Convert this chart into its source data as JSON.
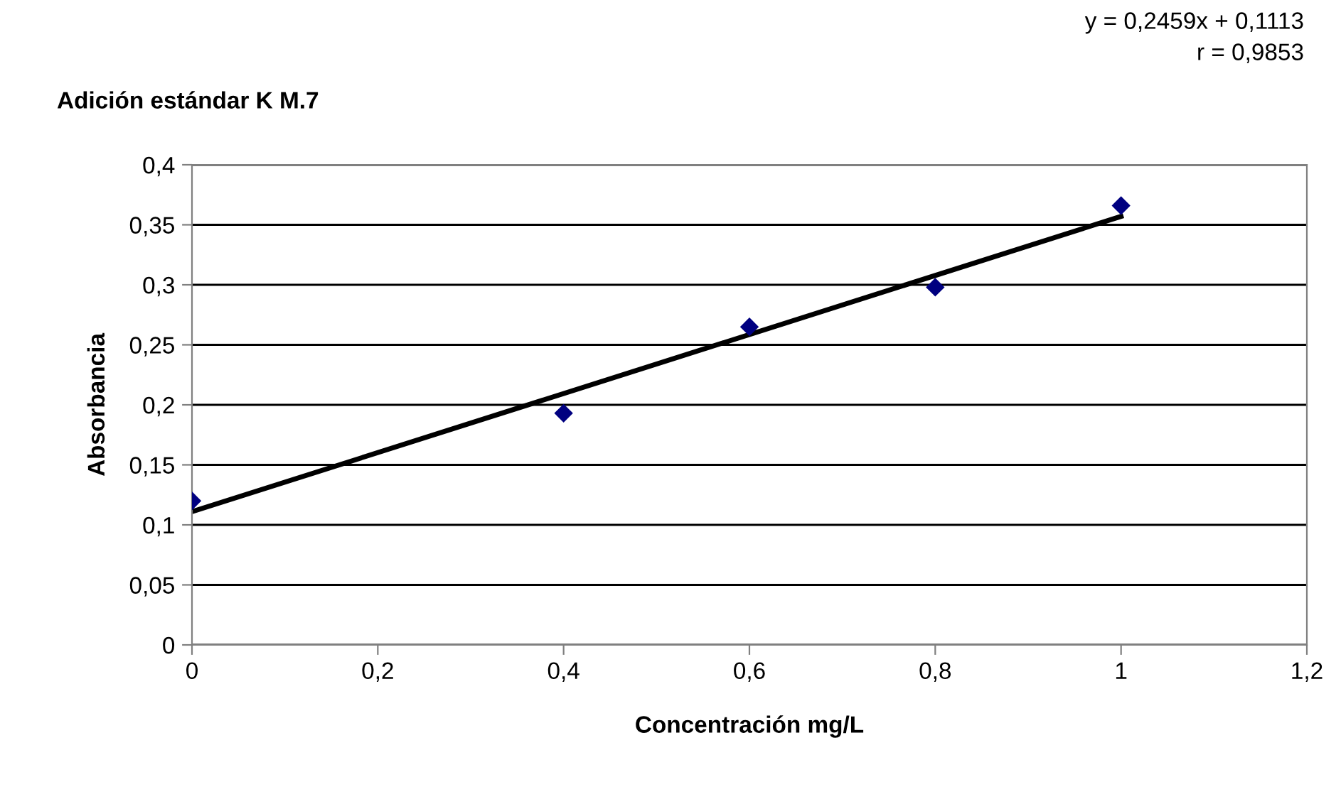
{
  "chart_data": {
    "type": "scatter",
    "title": "Adición estándar K M.7",
    "xlabel": "Concentración mg/L",
    "ylabel": "Absorbancia",
    "x": [
      0,
      0.4,
      0.6,
      0.8,
      1
    ],
    "series": [
      {
        "color": "#000080",
        "marker": "diamond",
        "values": [
          0.12,
          0.193,
          0.265,
          0.298,
          0.366
        ]
      },
      {
        "type": "line",
        "color": "#000000",
        "marker": "none",
        "line_style": "solid",
        "x": [
          0,
          1
        ],
        "values": [
          0.111,
          0.357
        ]
      }
    ],
    "annotations": [
      "y = 0,2459x + 0,1113",
      "r = 0,9853"
    ],
    "xlim": [
      0,
      1.2
    ],
    "xticks": [
      {
        "value": 0,
        "label": "0"
      },
      {
        "value": 0.2,
        "label": "0,2"
      },
      {
        "value": 0.4,
        "label": "0,4"
      },
      {
        "value": 0.6,
        "label": "0,6"
      },
      {
        "value": 0.8,
        "label": "0,8"
      },
      {
        "value": 1,
        "label": "1"
      },
      {
        "value": 1.2,
        "label": "1,2"
      }
    ],
    "ylim": [
      0,
      0.4
    ],
    "yticks": [
      {
        "value": 0,
        "label": "0"
      },
      {
        "value": 0.05,
        "label": "0,05"
      },
      {
        "value": 0.1,
        "label": "0,1"
      },
      {
        "value": 0.15,
        "label": "0,15"
      },
      {
        "value": 0.2,
        "label": "0,2"
      },
      {
        "value": 0.25,
        "label": "0,25"
      },
      {
        "value": 0.3,
        "label": "0,3"
      },
      {
        "value": 0.35,
        "label": "0,35"
      },
      {
        "value": 0.4,
        "label": "0,4"
      }
    ],
    "grid": "y"
  }
}
